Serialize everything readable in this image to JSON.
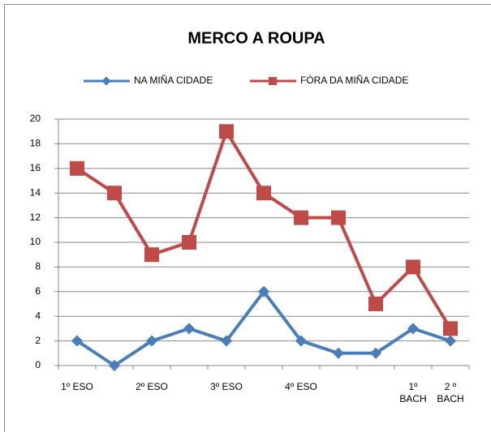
{
  "chart_data": {
    "type": "line",
    "title": "MERCO A ROUPA",
    "categories": [
      "1º ESO",
      null,
      "2º ESO",
      null,
      "3º ESO",
      null,
      "4º ESO",
      null,
      null,
      "1º BACH",
      "2 º BACH"
    ],
    "series": [
      {
        "name": "NA MIÑA CIDADE",
        "color": "#4a7ebb",
        "values": [
          2,
          0,
          2,
          3,
          2,
          6,
          2,
          1,
          1,
          3,
          2
        ]
      },
      {
        "name": "FÓRA DA MIÑA CIDADE",
        "color": "#be4b48",
        "values": [
          16,
          14,
          9,
          10,
          19,
          14,
          12,
          12,
          5,
          8,
          3
        ]
      }
    ],
    "ylim": [
      0,
      20
    ],
    "yticks": [
      0,
      2,
      4,
      6,
      8,
      10,
      12,
      14,
      16,
      18,
      20
    ],
    "grid": true,
    "legend": "top"
  }
}
